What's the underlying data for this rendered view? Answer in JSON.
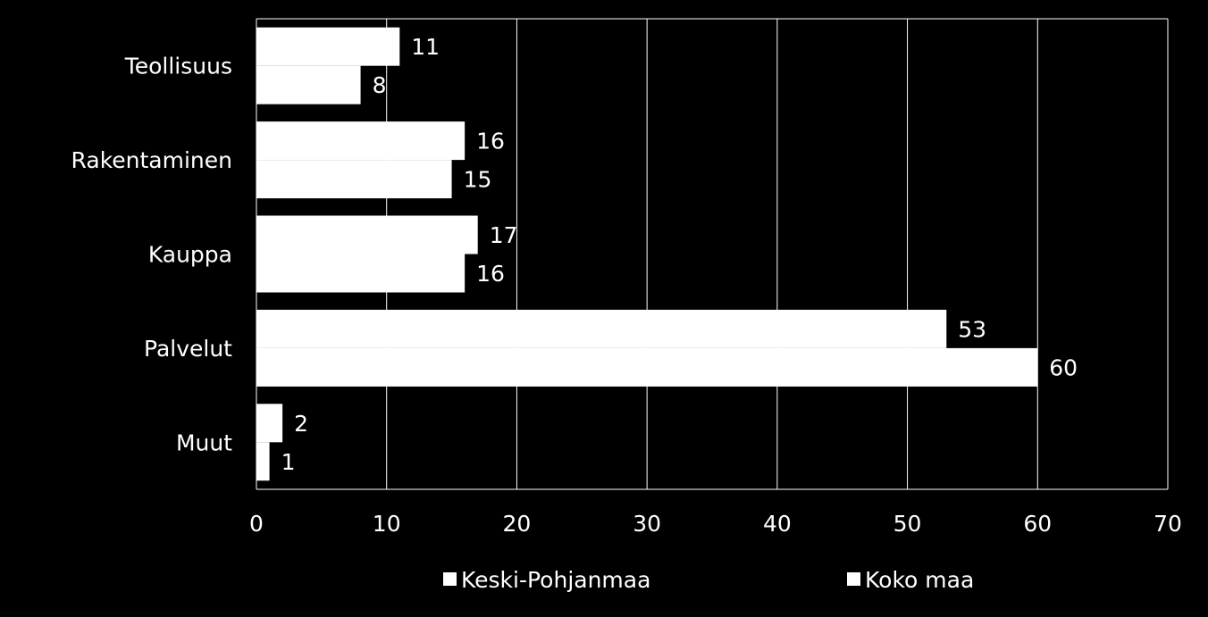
{
  "chart_data": {
    "type": "bar",
    "orientation": "horizontal",
    "categories": [
      "Teollisuus",
      "Rakentaminen",
      "Kauppa",
      "Palvelut",
      "Muut"
    ],
    "series": [
      {
        "name": "Keski-Pohjanmaa",
        "values": [
          11,
          16,
          17,
          53,
          2
        ]
      },
      {
        "name": "Koko maa",
        "values": [
          8,
          15,
          16,
          60,
          1
        ]
      }
    ],
    "xlim": [
      0,
      70
    ],
    "xticks": [
      0,
      10,
      20,
      30,
      40,
      50,
      60,
      70
    ],
    "grid": true,
    "legend": "bottom",
    "colors": {
      "background": "#000000",
      "bars": "#ffffff",
      "grid": "#ffffff",
      "text": "#ffffff"
    }
  }
}
